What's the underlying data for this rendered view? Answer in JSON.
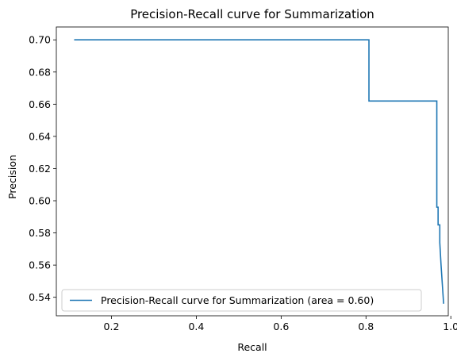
{
  "chart_data": {
    "type": "line",
    "title": "Precision-Recall curve for Summarization",
    "xlabel": "Recall",
    "ylabel": "Precision",
    "xlim": [
      0.07,
      0.994
    ],
    "ylim": [
      0.5285,
      0.708
    ],
    "xticks": [
      {
        "value": 0.2,
        "label": "0.2"
      },
      {
        "value": 0.4,
        "label": "0.4"
      },
      {
        "value": 0.6,
        "label": "0.6"
      },
      {
        "value": 0.8,
        "label": "0.8"
      },
      {
        "value": 1.0,
        "label": "1.0"
      }
    ],
    "yticks": [
      {
        "value": 0.54,
        "label": "0.54"
      },
      {
        "value": 0.56,
        "label": "0.56"
      },
      {
        "value": 0.58,
        "label": "0.58"
      },
      {
        "value": 0.6,
        "label": "0.60"
      },
      {
        "value": 0.62,
        "label": "0.62"
      },
      {
        "value": 0.64,
        "label": "0.64"
      },
      {
        "value": 0.66,
        "label": "0.66"
      },
      {
        "value": 0.68,
        "label": "0.68"
      },
      {
        "value": 0.7,
        "label": "0.70"
      }
    ],
    "grid": false,
    "legend_position": "lower left",
    "series": [
      {
        "name": "Precision-Recall curve for Summarization (area = 0.60)",
        "color": "#1f77b4",
        "x": [
          0.112,
          0.807,
          0.807,
          0.967,
          0.967,
          0.97,
          0.97,
          0.974,
          0.974,
          0.977,
          0.983
        ],
        "y": [
          0.7,
          0.7,
          0.662,
          0.662,
          0.596,
          0.596,
          0.585,
          0.585,
          0.574,
          0.56,
          0.536
        ]
      }
    ]
  }
}
